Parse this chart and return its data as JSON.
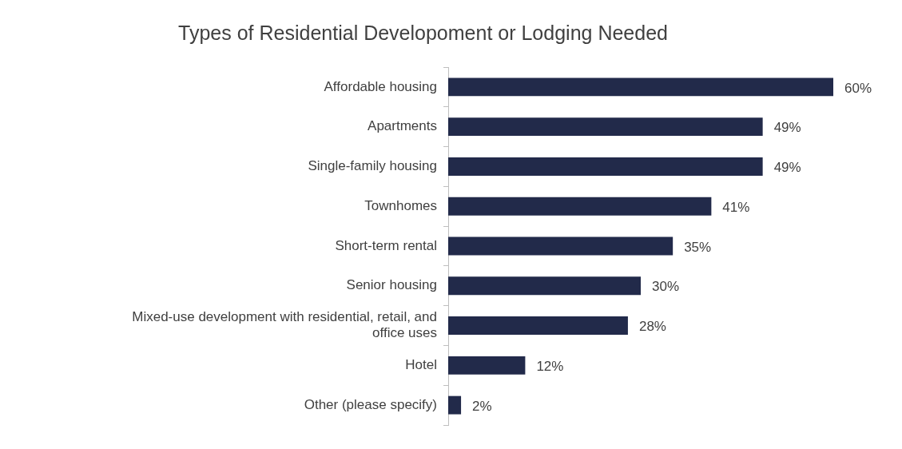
{
  "chart_data": {
    "type": "bar",
    "orientation": "horizontal",
    "title": "Types of Residential Developoment or Lodging Needed",
    "categories": [
      "Affordable housing",
      "Apartments",
      "Single-family housing",
      "Townhomes",
      "Short-term rental",
      "Senior housing",
      "Mixed-use development with residential, retail, and office uses",
      "Hotel",
      "Other (please specify)"
    ],
    "values": [
      60,
      49,
      49,
      41,
      35,
      30,
      28,
      12,
      2
    ],
    "value_labels": [
      "60%",
      "49%",
      "49%",
      "41%",
      "35%",
      "30%",
      "28%",
      "12%",
      "2%"
    ],
    "color": "#222a4a",
    "relative": false,
    "xlim": [
      0,
      60
    ],
    "grid": false,
    "legend": false
  }
}
